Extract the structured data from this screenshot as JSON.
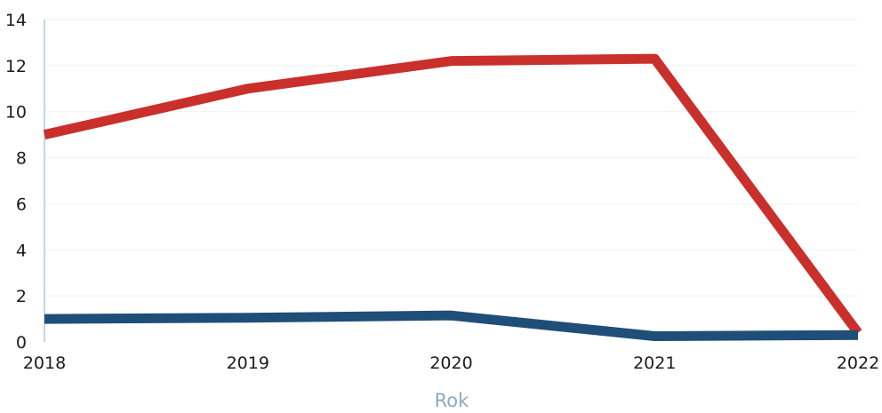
{
  "chart_data": {
    "type": "line",
    "title": "",
    "xlabel": "Rok",
    "ylabel": "",
    "x": [
      "2018",
      "2019",
      "2020",
      "2021",
      "2022"
    ],
    "ylim": [
      0,
      14
    ],
    "yticks": [
      0,
      2,
      4,
      6,
      8,
      10,
      12,
      14
    ],
    "grid": true,
    "legend": "none",
    "series": [
      {
        "color": "#c9302c",
        "values": [
          9.0,
          11.0,
          12.2,
          12.3,
          0.4
        ]
      },
      {
        "color": "#1f4e79",
        "values": [
          1.0,
          1.05,
          1.15,
          0.25,
          0.3
        ]
      }
    ]
  }
}
